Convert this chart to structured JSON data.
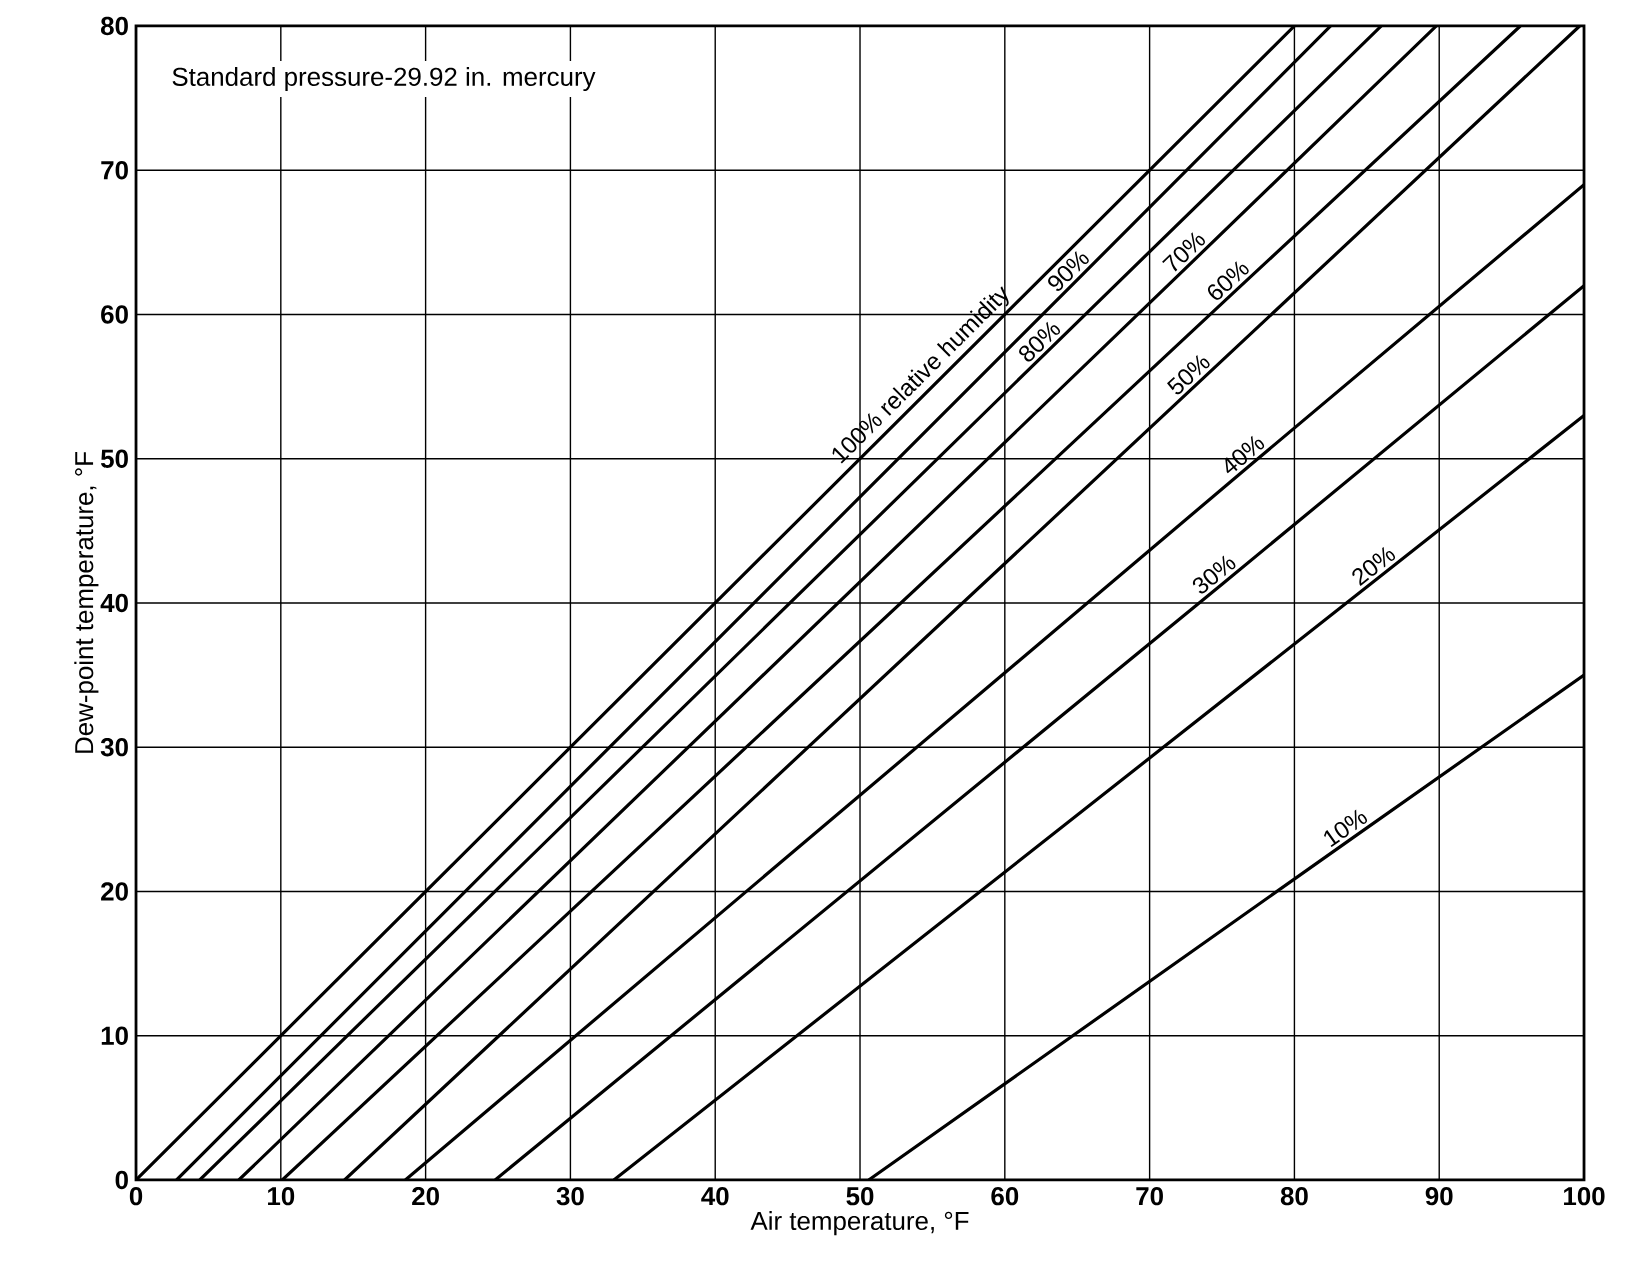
{
  "chart_data": {
    "type": "line",
    "xlabel": "Air temperature, °F",
    "ylabel": "Dew-point temperature, °F",
    "xlim": [
      0,
      100
    ],
    "ylim": [
      0,
      80
    ],
    "xticks": [
      0,
      10,
      20,
      30,
      40,
      50,
      60,
      70,
      80,
      90,
      100
    ],
    "yticks": [
      0,
      10,
      20,
      30,
      40,
      50,
      60,
      70,
      80
    ],
    "grid": true,
    "marker": "none",
    "line_style": "solid",
    "series": [
      {
        "color": "#000000",
        "x": [
          0,
          40,
          80
        ],
        "values": [
          0,
          40,
          80
        ]
      },
      {
        "color": "#000000",
        "x": [
          2.8,
          65,
          82.5
        ],
        "values": [
          0,
          62.4,
          80
        ]
      },
      {
        "color": "#000000",
        "x": [
          4.4,
          63,
          86
        ],
        "values": [
          0,
          57.5,
          80
        ]
      },
      {
        "color": "#000000",
        "x": [
          7.1,
          73,
          89.8
        ],
        "values": [
          0,
          63.7,
          80
        ]
      },
      {
        "color": "#000000",
        "x": [
          10.1,
          76,
          95.6
        ],
        "values": [
          0,
          61.7,
          80
        ]
      },
      {
        "color": "#000000",
        "x": [
          14.4,
          73.3,
          99.7
        ],
        "values": [
          0,
          55.2,
          80
        ]
      },
      {
        "color": "#000000",
        "x": [
          18.6,
          77,
          100
        ],
        "values": [
          0,
          49.6,
          69
        ]
      },
      {
        "color": "#000000",
        "x": [
          24.8,
          75,
          100
        ],
        "values": [
          0,
          41.3,
          62
        ]
      },
      {
        "color": "#000000",
        "x": [
          33,
          86,
          100
        ],
        "values": [
          0,
          41.9,
          53
        ]
      },
      {
        "color": "#000000",
        "x": [
          50.6,
          84,
          100
        ],
        "values": [
          0,
          23.7,
          35
        ]
      }
    ],
    "annotations": [
      "Standard pressure-29.92 in. mercury",
      {
        "text": "100% relative humidity",
        "x": 55,
        "y": 55
      },
      {
        "text": "90%",
        "x": 65,
        "y": 62.4
      },
      {
        "text": "80%",
        "x": 63,
        "y": 57.5
      },
      {
        "text": "70%",
        "x": 73,
        "y": 63.7
      },
      {
        "text": "60%",
        "x": 76,
        "y": 61.7
      },
      {
        "text": "50%",
        "x": 73.3,
        "y": 55.2
      },
      {
        "text": "40%",
        "x": 77,
        "y": 49.6
      },
      {
        "text": "30%",
        "x": 75,
        "y": 41.3
      },
      {
        "text": "20%",
        "x": 86,
        "y": 41.9
      },
      {
        "text": "10%",
        "x": 84,
        "y": 23.7
      }
    ]
  }
}
